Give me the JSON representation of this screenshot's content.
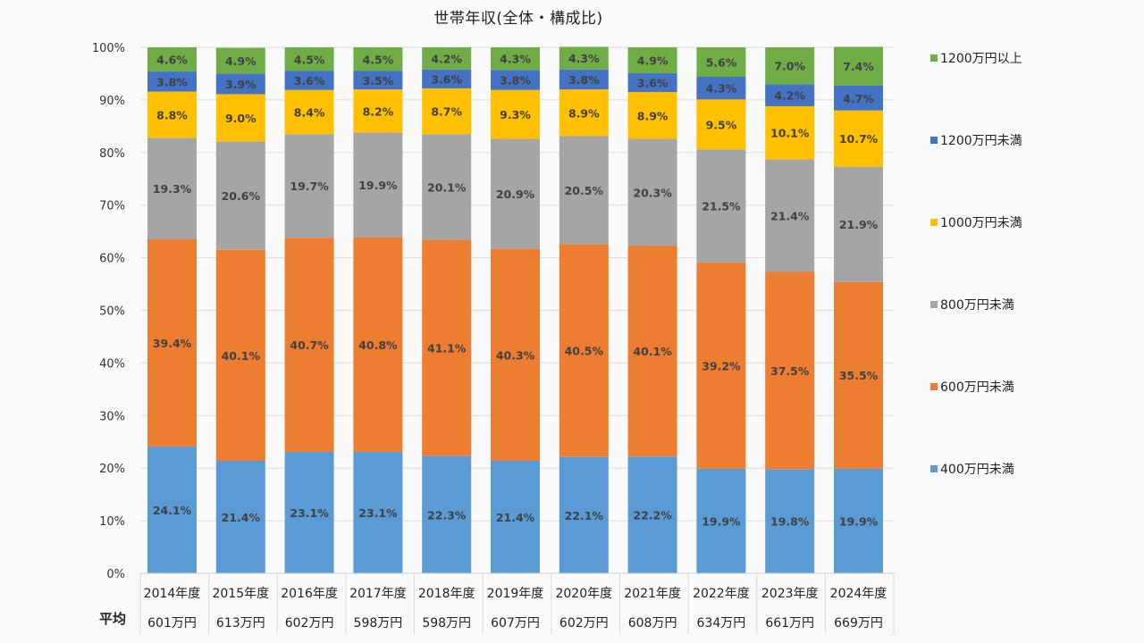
{
  "chart_data": {
    "type": "bar",
    "stacked": true,
    "title": "世帯年収(全体・構成比)",
    "xlabel": "",
    "ylabel": "",
    "ylim": [
      0,
      100
    ],
    "yticks": [
      "0%",
      "10%",
      "20%",
      "30%",
      "40%",
      "50%",
      "60%",
      "70%",
      "80%",
      "90%",
      "100%"
    ],
    "grid": true,
    "legend_position": "right",
    "categories": [
      "2014年度",
      "2015年度",
      "2016年度",
      "2017年度",
      "2018年度",
      "2019年度",
      "2020年度",
      "2021年度",
      "2022年度",
      "2023年度",
      "2024年度"
    ],
    "average_row_label": "平均",
    "averages": [
      "601万円",
      "613万円",
      "602万円",
      "598万円",
      "598万円",
      "607万円",
      "602万円",
      "608万円",
      "634万円",
      "661万円",
      "669万円"
    ],
    "series": [
      {
        "name": "400万円未満",
        "color": "#5b9bd5",
        "values": [
          24.1,
          21.4,
          23.1,
          23.1,
          22.3,
          21.4,
          22.1,
          22.2,
          19.9,
          19.8,
          19.9
        ]
      },
      {
        "name": "600万円未満",
        "color": "#ed7d31",
        "values": [
          39.4,
          40.1,
          40.7,
          40.8,
          41.1,
          40.3,
          40.5,
          40.1,
          39.2,
          37.5,
          35.5
        ]
      },
      {
        "name": "800万円未満",
        "color": "#a5a5a5",
        "values": [
          19.3,
          20.6,
          19.7,
          19.9,
          20.1,
          20.9,
          20.5,
          20.3,
          21.5,
          21.4,
          21.9
        ]
      },
      {
        "name": "1000万円未満",
        "color": "#ffc000",
        "values": [
          8.8,
          9.0,
          8.4,
          8.2,
          8.7,
          9.3,
          8.9,
          8.9,
          9.5,
          10.1,
          10.7
        ]
      },
      {
        "name": "1200万円未満",
        "color": "#4472c4",
        "values": [
          3.8,
          3.9,
          3.6,
          3.5,
          3.6,
          3.8,
          3.8,
          3.6,
          4.3,
          4.2,
          4.7
        ]
      },
      {
        "name": "1200万円以上",
        "color": "#70ad47",
        "values": [
          4.6,
          4.9,
          4.5,
          4.5,
          4.2,
          4.3,
          4.3,
          4.9,
          5.6,
          7.0,
          7.4
        ]
      }
    ],
    "legend_order": [
      "1200万円以上",
      "1200万円未満",
      "1000万円未満",
      "800万円未満",
      "600万円未満",
      "400万円未満"
    ]
  }
}
